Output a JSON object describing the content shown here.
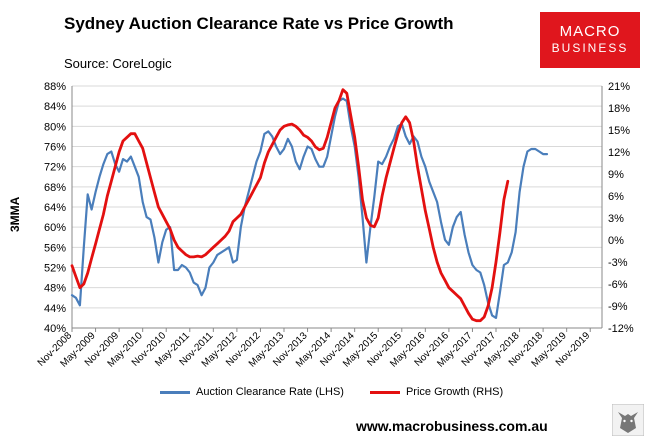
{
  "chart_data": {
    "type": "line",
    "title": "Sydney Auction Clearance Rate vs Price Growth",
    "subtitle": "Source: CoreLogic",
    "ylabel_left": "3MMA",
    "ylim_left": [
      40,
      88
    ],
    "yticks_left": [
      "40%",
      "44%",
      "48%",
      "52%",
      "56%",
      "60%",
      "64%",
      "68%",
      "72%",
      "76%",
      "80%",
      "84%",
      "88%"
    ],
    "ylim_right": [
      -12,
      21
    ],
    "yticks_right": [
      "-12%",
      "-9%",
      "-6%",
      "-3%",
      "0%",
      "3%",
      "6%",
      "9%",
      "12%",
      "15%",
      "18%",
      "21%"
    ],
    "xlim": [
      0,
      135
    ],
    "xticks": [
      {
        "label": "Nov-2008",
        "x": 0
      },
      {
        "label": "May-2009",
        "x": 6
      },
      {
        "label": "Nov-2009",
        "x": 12
      },
      {
        "label": "May-2010",
        "x": 18
      },
      {
        "label": "Nov-2010",
        "x": 24
      },
      {
        "label": "May-2011",
        "x": 30
      },
      {
        "label": "Nov-2011",
        "x": 36
      },
      {
        "label": "May-2012",
        "x": 42
      },
      {
        "label": "Nov-2012",
        "x": 48
      },
      {
        "label": "May-2013",
        "x": 54
      },
      {
        "label": "Nov-2013",
        "x": 60
      },
      {
        "label": "May-2014",
        "x": 66
      },
      {
        "label": "Nov-2014",
        "x": 72
      },
      {
        "label": "May-2015",
        "x": 78
      },
      {
        "label": "Nov-2015",
        "x": 84
      },
      {
        "label": "May-2016",
        "x": 90
      },
      {
        "label": "Nov-2016",
        "x": 96
      },
      {
        "label": "May-2017",
        "x": 102
      },
      {
        "label": "Nov-2017",
        "x": 108
      },
      {
        "label": "May-2018",
        "x": 114
      },
      {
        "label": "Nov-2018",
        "x": 120
      },
      {
        "label": "May-2019",
        "x": 126
      },
      {
        "label": "Nov-2019",
        "x": 132
      }
    ],
    "series": [
      {
        "name": "Auction Clearance Rate (LHS)",
        "axis": "left",
        "color": "#4a7ebb",
        "points": [
          [
            0,
            46.5
          ],
          [
            1,
            46
          ],
          [
            2,
            44.5
          ],
          [
            3,
            56
          ],
          [
            4,
            66.5
          ],
          [
            5,
            63.5
          ],
          [
            6,
            67
          ],
          [
            7,
            70
          ],
          [
            8,
            72.5
          ],
          [
            9,
            74.5
          ],
          [
            10,
            75
          ],
          [
            11,
            72.5
          ],
          [
            12,
            71
          ],
          [
            13,
            73.5
          ],
          [
            14,
            73
          ],
          [
            15,
            74
          ],
          [
            16,
            72
          ],
          [
            17,
            70
          ],
          [
            18,
            65
          ],
          [
            19,
            62
          ],
          [
            20,
            61.5
          ],
          [
            21,
            58
          ],
          [
            22,
            53
          ],
          [
            23,
            57
          ],
          [
            24,
            59.5
          ],
          [
            25,
            60
          ],
          [
            26,
            51.5
          ],
          [
            27,
            51.5
          ],
          [
            28,
            52.5
          ],
          [
            29,
            52
          ],
          [
            30,
            51
          ],
          [
            31,
            49
          ],
          [
            32,
            48.5
          ],
          [
            33,
            46.5
          ],
          [
            34,
            48
          ],
          [
            35,
            52
          ],
          [
            36,
            53
          ],
          [
            37,
            54.5
          ],
          [
            38,
            55
          ],
          [
            39,
            55.5
          ],
          [
            40,
            56
          ],
          [
            41,
            53
          ],
          [
            42,
            53.5
          ],
          [
            43,
            60
          ],
          [
            44,
            64
          ],
          [
            45,
            67
          ],
          [
            46,
            70
          ],
          [
            47,
            73
          ],
          [
            48,
            75
          ],
          [
            49,
            78.5
          ],
          [
            50,
            79
          ],
          [
            51,
            78
          ],
          [
            52,
            76
          ],
          [
            53,
            74.5
          ],
          [
            54,
            75.5
          ],
          [
            55,
            77.5
          ],
          [
            56,
            76
          ],
          [
            57,
            73
          ],
          [
            58,
            71.5
          ],
          [
            59,
            74
          ],
          [
            60,
            76
          ],
          [
            61,
            75.5
          ],
          [
            62,
            73.5
          ],
          [
            63,
            72
          ],
          [
            64,
            72
          ],
          [
            65,
            74
          ],
          [
            66,
            78
          ],
          [
            67,
            82
          ],
          [
            68,
            85
          ],
          [
            69,
            85.5
          ],
          [
            70,
            85
          ],
          [
            71,
            80
          ],
          [
            72,
            76
          ],
          [
            73,
            70
          ],
          [
            74,
            62
          ],
          [
            75,
            53
          ],
          [
            76,
            60
          ],
          [
            77,
            66
          ],
          [
            78,
            73
          ],
          [
            79,
            72.5
          ],
          [
            80,
            74
          ],
          [
            81,
            76
          ],
          [
            82,
            77.5
          ],
          [
            83,
            80
          ],
          [
            84,
            80.5
          ],
          [
            85,
            78
          ],
          [
            86,
            76.5
          ],
          [
            87,
            78
          ],
          [
            88,
            77
          ],
          [
            89,
            74
          ],
          [
            90,
            72
          ],
          [
            91,
            69
          ],
          [
            92,
            67
          ],
          [
            93,
            65
          ],
          [
            94,
            61
          ],
          [
            95,
            57.5
          ],
          [
            96,
            56.5
          ],
          [
            97,
            60
          ],
          [
            98,
            62
          ],
          [
            99,
            63
          ],
          [
            100,
            58.5
          ],
          [
            101,
            55
          ],
          [
            102,
            52.5
          ],
          [
            103,
            51.5
          ],
          [
            104,
            51
          ],
          [
            105,
            48.5
          ],
          [
            106,
            45
          ],
          [
            107,
            42.5
          ],
          [
            108,
            42
          ],
          [
            109,
            47
          ],
          [
            110,
            52.5
          ],
          [
            111,
            53
          ],
          [
            112,
            55
          ],
          [
            113,
            59
          ],
          [
            114,
            67
          ],
          [
            115,
            72
          ],
          [
            116,
            75
          ],
          [
            117,
            75.5
          ],
          [
            118,
            75.5
          ],
          [
            119,
            75
          ],
          [
            120,
            74.5
          ],
          [
            121,
            74.5
          ]
        ]
      },
      {
        "name": "Price Growth (RHS)",
        "axis": "right",
        "color": "#e31010",
        "points": [
          [
            0,
            -3.5
          ],
          [
            1,
            -5
          ],
          [
            2,
            -6.5
          ],
          [
            3,
            -6
          ],
          [
            4,
            -4.5
          ],
          [
            5,
            -2.5
          ],
          [
            6,
            -0.5
          ],
          [
            7,
            1.5
          ],
          [
            8,
            3.5
          ],
          [
            9,
            6
          ],
          [
            10,
            8
          ],
          [
            11,
            10
          ],
          [
            12,
            12
          ],
          [
            13,
            13.5
          ],
          [
            14,
            14
          ],
          [
            15,
            14.5
          ],
          [
            16,
            14.5
          ],
          [
            17,
            13.5
          ],
          [
            18,
            12.5
          ],
          [
            19,
            10.5
          ],
          [
            20,
            8.5
          ],
          [
            21,
            6.5
          ],
          [
            22,
            4.5
          ],
          [
            23,
            3.5
          ],
          [
            24,
            2.5
          ],
          [
            25,
            1.5
          ],
          [
            26,
            0
          ],
          [
            27,
            -1
          ],
          [
            28,
            -1.5
          ],
          [
            29,
            -2
          ],
          [
            30,
            -2.3
          ],
          [
            31,
            -2.3
          ],
          [
            32,
            -2.2
          ],
          [
            33,
            -2.3
          ],
          [
            34,
            -2
          ],
          [
            35,
            -1.5
          ],
          [
            36,
            -1
          ],
          [
            37,
            -0.5
          ],
          [
            38,
            0
          ],
          [
            39,
            0.5
          ],
          [
            40,
            1.2
          ],
          [
            41,
            2.5
          ],
          [
            42,
            3
          ],
          [
            43,
            3.5
          ],
          [
            44,
            4.5
          ],
          [
            45,
            5.5
          ],
          [
            46,
            6.5
          ],
          [
            47,
            7.5
          ],
          [
            48,
            8.5
          ],
          [
            49,
            10.5
          ],
          [
            50,
            12
          ],
          [
            51,
            13
          ],
          [
            52,
            14
          ],
          [
            53,
            15
          ],
          [
            54,
            15.5
          ],
          [
            55,
            15.7
          ],
          [
            56,
            15.8
          ],
          [
            57,
            15.5
          ],
          [
            58,
            15
          ],
          [
            59,
            14.3
          ],
          [
            60,
            14
          ],
          [
            61,
            13.5
          ],
          [
            62,
            12.7
          ],
          [
            63,
            12.3
          ],
          [
            64,
            12.5
          ],
          [
            65,
            14
          ],
          [
            66,
            16
          ],
          [
            67,
            18
          ],
          [
            68,
            19
          ],
          [
            69,
            20.5
          ],
          [
            70,
            20
          ],
          [
            71,
            17
          ],
          [
            72,
            14
          ],
          [
            73,
            10
          ],
          [
            74,
            5.5
          ],
          [
            75,
            3
          ],
          [
            76,
            2
          ],
          [
            77,
            1.8
          ],
          [
            78,
            3
          ],
          [
            79,
            6
          ],
          [
            80,
            8.5
          ],
          [
            81,
            10.5
          ],
          [
            82,
            12.5
          ],
          [
            83,
            14.5
          ],
          [
            84,
            16
          ],
          [
            85,
            16.8
          ],
          [
            86,
            16
          ],
          [
            87,
            13.5
          ],
          [
            88,
            10
          ],
          [
            89,
            7
          ],
          [
            90,
            4
          ],
          [
            91,
            1.5
          ],
          [
            92,
            -1
          ],
          [
            93,
            -3
          ],
          [
            94,
            -4.5
          ],
          [
            95,
            -5.5
          ],
          [
            96,
            -6.5
          ],
          [
            97,
            -7
          ],
          [
            98,
            -7.5
          ],
          [
            99,
            -8
          ],
          [
            100,
            -9
          ],
          [
            101,
            -10
          ],
          [
            102,
            -10.8
          ],
          [
            103,
            -11
          ],
          [
            104,
            -11
          ],
          [
            105,
            -10.5
          ],
          [
            106,
            -9
          ],
          [
            107,
            -6.5
          ],
          [
            108,
            -3
          ],
          [
            109,
            1
          ],
          [
            110,
            5.5
          ],
          [
            111,
            8
          ]
        ]
      }
    ],
    "legend": [
      "Auction Clearance Rate (LHS)",
      "Price Growth (RHS)"
    ],
    "legend_position": "bottom"
  },
  "logo": {
    "line1": "MACRO",
    "line2": "BUSINESS"
  },
  "website": "www.macrobusiness.com.au"
}
